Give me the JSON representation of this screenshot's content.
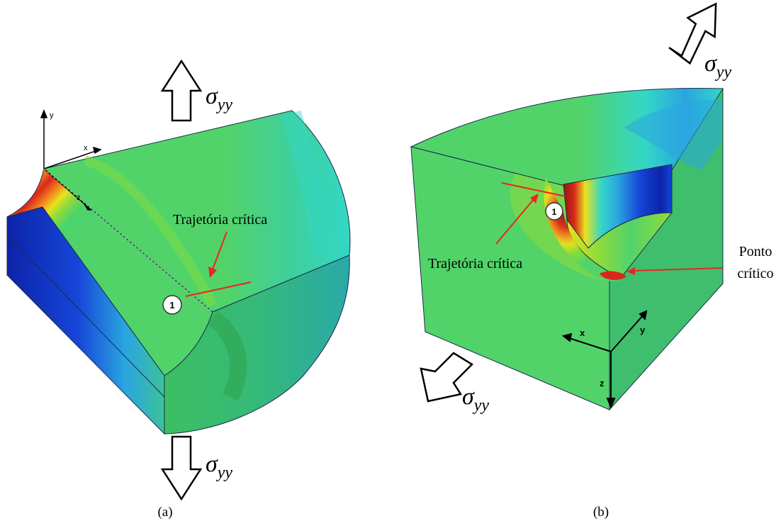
{
  "stress_symbol": "σ",
  "stress_subscript": "yy",
  "panels": {
    "a": {
      "caption": "(a)",
      "label_critical_path": "Trajetória crítica",
      "marker_1": "1",
      "axes": {
        "x": "x",
        "y": "y",
        "z": "z"
      }
    },
    "b": {
      "caption": "(b)",
      "label_critical_path": "Trajetória crítica",
      "label_critical_point_line1": "Ponto",
      "label_critical_point_line2": "crítico",
      "marker_1": "1",
      "axes": {
        "x": "x",
        "y": "y",
        "z": "z"
      }
    }
  },
  "colors": {
    "annotation_red": "#e8261f",
    "contour_red": "#d9271b",
    "contour_orange": "#f3841f",
    "contour_yellow": "#e8e21d",
    "contour_lightgreen": "#8fdb3a",
    "contour_green": "#4ad36d",
    "contour_cyan": "#33d7c6",
    "contour_lightblue": "#2aa5e0",
    "contour_blue": "#1646d8",
    "contour_darkblue": "#0c23a8",
    "contour_brown": "#8a1a10"
  }
}
